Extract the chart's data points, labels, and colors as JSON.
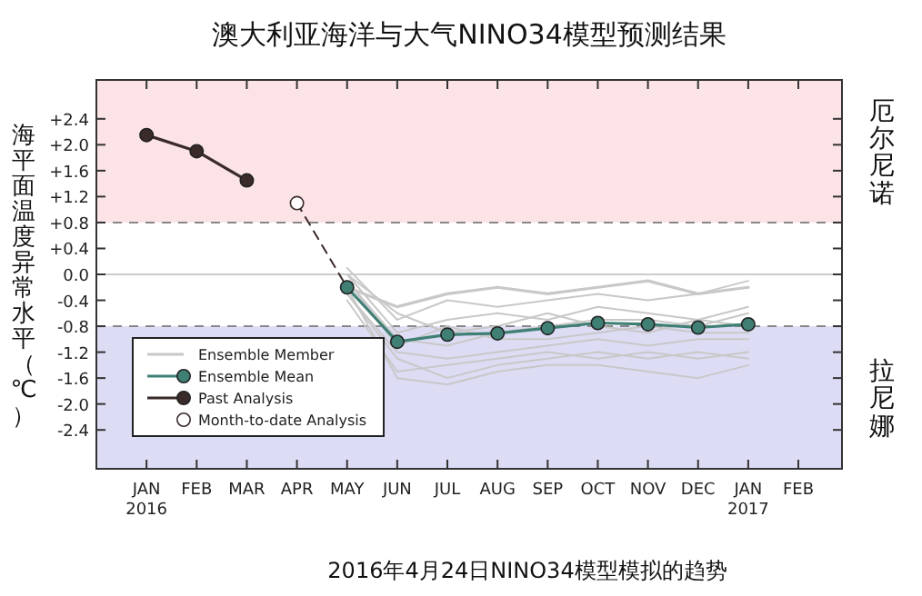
{
  "chart_data": {
    "type": "line",
    "title": "澳大利亚海洋与大气NINO34模型预测结果",
    "ylabel": "海平面温度异常水平（℃）",
    "categories": [
      "JAN\n2016",
      "FEB",
      "MAR",
      "APR",
      "MAY",
      "JUN",
      "JUL",
      "AUG",
      "SEP",
      "OCT",
      "NOV",
      "DEC",
      "JAN\n2017",
      "FEB"
    ],
    "ylim": [
      -3,
      3
    ],
    "yticks": [
      {
        "value": 2.4,
        "label": "+2.4"
      },
      {
        "value": 2.0,
        "label": "+2.0"
      },
      {
        "value": 1.6,
        "label": "+1.6"
      },
      {
        "value": 1.2,
        "label": "+1.2"
      },
      {
        "value": 0.8,
        "label": "+0.8"
      },
      {
        "value": 0.4,
        "label": "+0.4"
      },
      {
        "value": 0,
        "label": "0.0"
      },
      {
        "value": -0.4,
        "label": "-0.4"
      },
      {
        "value": -0.8,
        "label": "-0.8"
      },
      {
        "value": -1.2,
        "label": "-1.2"
      },
      {
        "value": -1.6,
        "label": "-1.6"
      },
      {
        "value": -2.0,
        "label": "-2.0"
      },
      {
        "value": -2.4,
        "label": "-2.4"
      }
    ],
    "bands": [
      {
        "axis": "y",
        "from": 0.8,
        "to": 3,
        "label": "厄尔尼诺",
        "color": "#fbe3e6"
      },
      {
        "axis": "y",
        "from": -3,
        "to": -0.8,
        "label": "拉尼娜",
        "color": "#dddcf5"
      }
    ],
    "ref_lines": [
      {
        "axis": "y",
        "value": 0.8,
        "color": "#888888",
        "line_style": "dashed"
      },
      {
        "axis": "y",
        "value": -0.8,
        "color": "#888888",
        "line_style": "dashed"
      },
      {
        "axis": "y",
        "value": 0,
        "color": "#cccccc",
        "line_style": "solid"
      }
    ],
    "series": [
      {
        "name": "Ensemble Member",
        "color": "#c8c8c8",
        "marker": "none",
        "values": [
          null,
          null,
          null,
          null,
          -0.2,
          -0.5,
          -0.3,
          -0.2,
          -0.3,
          -0.2,
          -0.1,
          -0.3,
          -0.2,
          null
        ]
      },
      {
        "type": "line",
        "color": "#c8c8c8",
        "marker": "none",
        "values": [
          null,
          null,
          null,
          null,
          0.1,
          -0.7,
          -0.4,
          -0.5,
          -0.4,
          -0.3,
          -0.4,
          -0.3,
          -0.1,
          null
        ]
      },
      {
        "type": "line",
        "color": "#c8c8c8",
        "marker": "none",
        "values": [
          null,
          null,
          null,
          null,
          0.0,
          -0.9,
          -0.7,
          -0.6,
          -0.7,
          -0.5,
          -0.6,
          -0.7,
          -0.5,
          null
        ]
      },
      {
        "type": "line",
        "color": "#c8c8c8",
        "marker": "none",
        "values": [
          null,
          null,
          null,
          null,
          -0.1,
          -1.0,
          -1.1,
          -0.9,
          -0.8,
          -0.7,
          -0.7,
          -0.8,
          -0.6,
          null
        ]
      },
      {
        "type": "line",
        "color": "#c8c8c8",
        "marker": "none",
        "values": [
          null,
          null,
          null,
          null,
          -0.3,
          -1.2,
          -1.3,
          -1.2,
          -1.1,
          -1.0,
          -1.1,
          -1.0,
          -1.0,
          null
        ]
      },
      {
        "type": "line",
        "color": "#c8c8c8",
        "marker": "none",
        "values": [
          null,
          null,
          null,
          null,
          -0.4,
          -1.5,
          -1.4,
          -1.3,
          -1.2,
          -1.3,
          -1.2,
          -1.3,
          -1.2,
          null
        ]
      },
      {
        "type": "line",
        "color": "#c8c8c8",
        "marker": "none",
        "values": [
          null,
          null,
          null,
          null,
          -0.2,
          -1.6,
          -1.7,
          -1.5,
          -1.4,
          -1.4,
          -1.5,
          -1.6,
          -1.4,
          null
        ]
      },
      {
        "type": "line",
        "color": "#c8c8c8",
        "marker": "none",
        "values": [
          null,
          null,
          null,
          null,
          -0.3,
          -1.3,
          -1.6,
          -1.4,
          -1.3,
          -1.2,
          -1.3,
          -1.2,
          -1.3,
          null
        ]
      },
      {
        "type": "line",
        "color": "#c8c8c8",
        "marker": "none",
        "values": [
          null,
          null,
          null,
          null,
          0.0,
          -0.6,
          -0.9,
          -0.8,
          -0.6,
          -0.8,
          -0.9,
          -0.7,
          -0.8,
          null
        ]
      },
      {
        "type": "line",
        "color": "#c8c8c8",
        "marker": "none",
        "values": [
          null,
          null,
          null,
          null,
          -0.1,
          -1.1,
          -0.8,
          -1.0,
          -1.0,
          -0.9,
          -0.8,
          -0.9,
          -0.9,
          null
        ]
      },
      {
        "type": "line",
        "color": "#3a2a2a",
        "marker": "none",
        "line_style": "dashed",
        "values": [
          null,
          null,
          null,
          1.1,
          -0.2,
          null,
          null,
          null,
          null,
          null,
          null,
          null,
          null,
          null
        ]
      },
      {
        "name": "Ensemble Mean",
        "color": "#3f7f74",
        "marker": "circle",
        "values": [
          null,
          null,
          null,
          null,
          -0.2,
          -1.04,
          -0.93,
          -0.91,
          -0.83,
          -0.75,
          -0.77,
          -0.82,
          -0.77,
          null
        ]
      },
      {
        "name": "Past Analysis",
        "color": "#3a2a2a",
        "marker": "circle",
        "values": [
          2.15,
          1.9,
          1.45,
          null,
          null,
          null,
          null,
          null,
          null,
          null,
          null,
          null,
          null,
          null
        ]
      },
      {
        "name": "Month-to-date Analysis",
        "type": "scatter",
        "color": "#3a2a2a",
        "marker": "circle",
        "values": [
          null,
          null,
          null,
          1.1,
          null,
          null,
          null,
          null,
          null,
          null,
          null,
          null,
          null,
          null
        ]
      }
    ],
    "legend": "bottom left",
    "grid": false,
    "annotations": [
      "2016年4月24日NINO34模型模拟的趋势"
    ]
  }
}
